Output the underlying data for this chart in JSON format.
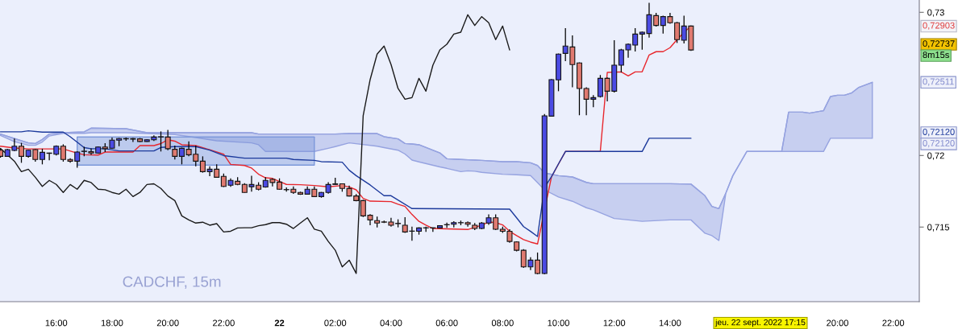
{
  "chart_data": {
    "type": "candlestick",
    "x": [
      "2022-09-21T14:00",
      "2022-09-21T14:15",
      "2022-09-21T14:30",
      "2022-09-21T14:45",
      "2022-09-21T15:00",
      "2022-09-21T15:15",
      "2022-09-21T15:30",
      "2022-09-21T15:45",
      "2022-09-21T16:00",
      "2022-09-21T16:15",
      "2022-09-21T16:30",
      "2022-09-21T16:45",
      "2022-09-21T17:00",
      "2022-09-21T17:15",
      "2022-09-21T17:30",
      "2022-09-21T17:45",
      "2022-09-21T18:00",
      "2022-09-21T18:15",
      "2022-09-21T18:30",
      "2022-09-21T18:45",
      "2022-09-21T19:00",
      "2022-09-21T19:15",
      "2022-09-21T19:30",
      "2022-09-21T19:45",
      "2022-09-21T20:00",
      "2022-09-21T20:15",
      "2022-09-21T20:30",
      "2022-09-21T20:45",
      "2022-09-21T21:00",
      "2022-09-21T21:15",
      "2022-09-21T21:30",
      "2022-09-21T21:45",
      "2022-09-21T22:00",
      "2022-09-21T22:15",
      "2022-09-21T22:30",
      "2022-09-21T22:45",
      "2022-09-21T23:00",
      "2022-09-21T23:15",
      "2022-09-21T23:30",
      "2022-09-21T23:45",
      "2022-09-22T00:00",
      "2022-09-22T00:15",
      "2022-09-22T00:30",
      "2022-09-22T00:45",
      "2022-09-22T01:00",
      "2022-09-22T01:15",
      "2022-09-22T01:30",
      "2022-09-22T01:45",
      "2022-09-22T02:00",
      "2022-09-22T02:15",
      "2022-09-22T02:30",
      "2022-09-22T02:45",
      "2022-09-22T03:00",
      "2022-09-22T03:15",
      "2022-09-22T03:30",
      "2022-09-22T03:45",
      "2022-09-22T04:00",
      "2022-09-22T04:15",
      "2022-09-22T04:30",
      "2022-09-22T04:45",
      "2022-09-22T05:00",
      "2022-09-22T05:15",
      "2022-09-22T05:30",
      "2022-09-22T05:45",
      "2022-09-22T06:00",
      "2022-09-22T06:15",
      "2022-09-22T06:30",
      "2022-09-22T06:45",
      "2022-09-22T07:00",
      "2022-09-22T07:15",
      "2022-09-22T07:30",
      "2022-09-22T07:45",
      "2022-09-22T08:00",
      "2022-09-22T08:15",
      "2022-09-22T08:30",
      "2022-09-22T08:45",
      "2022-09-22T09:00",
      "2022-09-22T09:15",
      "2022-09-22T09:30",
      "2022-09-22T09:45",
      "2022-09-22T10:00",
      "2022-09-22T10:15",
      "2022-09-22T10:30",
      "2022-09-22T10:45",
      "2022-09-22T11:00",
      "2022-09-22T11:15",
      "2022-09-22T11:30",
      "2022-09-22T11:45",
      "2022-09-22T12:00",
      "2022-09-22T12:15",
      "2022-09-22T12:30",
      "2022-09-22T12:45",
      "2022-09-22T13:00",
      "2022-09-22T13:15",
      "2022-09-22T13:30",
      "2022-09-22T13:45",
      "2022-09-22T14:00",
      "2022-09-22T14:15",
      "2022-09-22T14:30",
      "2022-09-22T14:45"
    ],
    "ohlc": [
      [
        0.72037,
        0.72047,
        0.71985,
        0.71994
      ],
      [
        0.71994,
        0.72047,
        0.7199,
        0.72041
      ],
      [
        0.72035,
        0.72118,
        0.7203,
        0.72065
      ],
      [
        0.72065,
        0.72088,
        0.71949,
        0.71994
      ],
      [
        0.71994,
        0.7204,
        0.71985,
        0.72037
      ],
      [
        0.72041,
        0.72045,
        0.71957,
        0.71972
      ],
      [
        0.71972,
        0.72047,
        0.71938,
        0.72022
      ],
      [
        0.72017,
        0.7202,
        0.71966,
        0.72015
      ],
      [
        0.72009,
        0.7207,
        0.72,
        0.72065
      ],
      [
        0.72065,
        0.72078,
        0.71957,
        0.71972
      ],
      [
        0.71972,
        0.71981,
        0.71949,
        0.7196
      ],
      [
        0.7196,
        0.7203,
        0.71915,
        0.72024
      ],
      [
        0.72028,
        0.72061,
        0.71994,
        0.7203
      ],
      [
        0.72026,
        0.7205,
        0.72005,
        0.72017
      ],
      [
        0.72017,
        0.72063,
        0.72013,
        0.72059
      ],
      [
        0.72059,
        0.72086,
        0.72024,
        0.72047
      ],
      [
        0.72051,
        0.72125,
        0.72047,
        0.72107
      ],
      [
        0.72107,
        0.72122,
        0.72065,
        0.72118
      ],
      [
        0.72116,
        0.72125,
        0.72103,
        0.72118
      ],
      [
        0.72118,
        0.72122,
        0.72094,
        0.72114
      ],
      [
        0.72116,
        0.72122,
        0.72094,
        0.72098
      ],
      [
        0.72098,
        0.72114,
        0.72096,
        0.7211
      ],
      [
        0.7211,
        0.7214,
        0.72101,
        0.72129
      ],
      [
        0.72129,
        0.72168,
        0.72028,
        0.72131
      ],
      [
        0.72129,
        0.72179,
        0.72037,
        0.72047
      ],
      [
        0.72043,
        0.72069,
        0.71972,
        0.71994
      ],
      [
        0.71994,
        0.72055,
        0.71938,
        0.7205
      ],
      [
        0.72043,
        0.72099,
        0.71994,
        0.72005
      ],
      [
        0.72009,
        0.72069,
        0.71925,
        0.7196
      ],
      [
        0.7196,
        0.71994,
        0.7188,
        0.71887
      ],
      [
        0.71887,
        0.71925,
        0.71855,
        0.71904
      ],
      [
        0.71904,
        0.71938,
        0.71845,
        0.71848
      ],
      [
        0.71854,
        0.71874,
        0.7178,
        0.71784
      ],
      [
        0.71792,
        0.7184,
        0.71781,
        0.71826
      ],
      [
        0.7182,
        0.71848,
        0.71792,
        0.71798
      ],
      [
        0.71798,
        0.71807,
        0.7174,
        0.71742
      ],
      [
        0.71782,
        0.71859,
        0.71747,
        0.71797
      ],
      [
        0.71792,
        0.71813,
        0.71756,
        0.71764
      ],
      [
        0.7178,
        0.71848,
        0.71775,
        0.71826
      ],
      [
        0.71833,
        0.7184,
        0.71784,
        0.71811
      ],
      [
        0.71814,
        0.7184,
        0.7176,
        0.71764
      ],
      [
        0.71762,
        0.71777,
        0.71747,
        0.71761
      ],
      [
        0.71764,
        0.71784,
        0.71732,
        0.71742
      ],
      [
        0.71742,
        0.71747,
        0.71725,
        0.7173
      ],
      [
        0.7173,
        0.71784,
        0.71728,
        0.71764
      ],
      [
        0.71764,
        0.71784,
        0.71711,
        0.71713
      ],
      [
        0.71713,
        0.71745,
        0.71705,
        0.71742
      ],
      [
        0.71742,
        0.71813,
        0.71734,
        0.71797
      ],
      [
        0.71798,
        0.71844,
        0.71795,
        0.71802
      ],
      [
        0.71802,
        0.71805,
        0.71747,
        0.7177
      ],
      [
        0.71769,
        0.7179,
        0.71713,
        0.71717
      ],
      [
        0.71717,
        0.7173,
        0.7168,
        0.71685
      ],
      [
        0.71685,
        0.7169,
        0.7157,
        0.71578
      ],
      [
        0.71582,
        0.7159,
        0.71513,
        0.7155
      ],
      [
        0.71545,
        0.71573,
        0.71498,
        0.71528
      ],
      [
        0.71536,
        0.71545,
        0.71528,
        0.71534
      ],
      [
        0.71535,
        0.71565,
        0.71503,
        0.71513
      ],
      [
        0.71526,
        0.71554,
        0.71498,
        0.71524
      ],
      [
        0.71513,
        0.71569,
        0.7146,
        0.71466
      ],
      [
        0.71472,
        0.71503,
        0.71404,
        0.71471
      ],
      [
        0.71471,
        0.71498,
        0.71447,
        0.71494
      ],
      [
        0.71494,
        0.71503,
        0.71466,
        0.71495
      ],
      [
        0.71494,
        0.71498,
        0.71466,
        0.71495
      ],
      [
        0.71494,
        0.71513,
        0.7149,
        0.71509
      ],
      [
        0.71516,
        0.71531,
        0.71494,
        0.71517
      ],
      [
        0.7152,
        0.71541,
        0.71498,
        0.71531
      ],
      [
        0.7153,
        0.71545,
        0.71513,
        0.71531
      ],
      [
        0.71531,
        0.71539,
        0.71503,
        0.7152
      ],
      [
        0.71513,
        0.71528,
        0.71479,
        0.7149
      ],
      [
        0.7149,
        0.71535,
        0.71485,
        0.71528
      ],
      [
        0.71528,
        0.71588,
        0.71516,
        0.71565
      ],
      [
        0.71565,
        0.71588,
        0.71479,
        0.71485
      ],
      [
        0.71485,
        0.71503,
        0.7146,
        0.71471
      ],
      [
        0.71471,
        0.71485,
        0.7139,
        0.714
      ],
      [
        0.71396,
        0.714,
        0.7133,
        0.71338
      ],
      [
        0.71338,
        0.71345,
        0.71215,
        0.71222
      ],
      [
        0.71222,
        0.7129,
        0.712,
        0.71269
      ],
      [
        0.71269,
        0.71322,
        0.7117,
        0.71176
      ],
      [
        0.71176,
        0.7229,
        0.7117,
        0.72277
      ],
      [
        0.72275,
        0.72534,
        0.72271,
        0.7253
      ],
      [
        0.72528,
        0.72712,
        0.72449,
        0.72708
      ],
      [
        0.72713,
        0.72889,
        0.72659,
        0.72764
      ],
      [
        0.72758,
        0.72839,
        0.72477,
        0.72635
      ],
      [
        0.72646,
        0.7265,
        0.72281,
        0.72468
      ],
      [
        0.72468,
        0.72477,
        0.72281,
        0.72393
      ],
      [
        0.72393,
        0.72421,
        0.72337,
        0.72404
      ],
      [
        0.72412,
        0.72562,
        0.72405,
        0.72539
      ],
      [
        0.72539,
        0.72545,
        0.72378,
        0.72449
      ],
      [
        0.72449,
        0.72805,
        0.7244,
        0.72631
      ],
      [
        0.72631,
        0.72745,
        0.7258,
        0.72738
      ],
      [
        0.72738,
        0.72783,
        0.72683,
        0.72777
      ],
      [
        0.72771,
        0.72889,
        0.72726,
        0.72848
      ],
      [
        0.72848,
        0.72865,
        0.72739,
        0.72861
      ],
      [
        0.72852,
        0.73067,
        0.72824,
        0.72983
      ],
      [
        0.72977,
        0.72996,
        0.729,
        0.72908
      ],
      [
        0.72908,
        0.72977,
        0.72852,
        0.7297
      ],
      [
        0.7297,
        0.72996,
        0.7292,
        0.72927
      ],
      [
        0.72927,
        0.72933,
        0.72786,
        0.72809
      ],
      [
        0.72805,
        0.72977,
        0.72783,
        0.72904
      ],
      [
        0.72904,
        0.72908,
        0.7273,
        0.72737
      ]
    ],
    "colors": [
      "#e07a70",
      "#4b4be3",
      "#4b4be3",
      "#e07a70",
      "#4b4be3",
      "#e07a70",
      "#4b4be3",
      "#e07a70",
      "#4b4be3",
      "#e07a70",
      "#e07a70",
      "#4b4be3",
      "#4b4be3",
      "#e07a70",
      "#4b4be3",
      "#e07a70",
      "#4b4be3",
      "#4b4be3",
      "#4b4be3",
      "#e07a70",
      "#e07a70",
      "#4b4be3",
      "#4b4be3",
      "#4b4be3",
      "#e07a70",
      "#e07a70",
      "#4b4be3",
      "#e07a70",
      "#e07a70",
      "#e07a70",
      "#4b4be3",
      "#e07a70",
      "#e07a70",
      "#4b4be3",
      "#e07a70",
      "#e07a70",
      "#4b4be3",
      "#e07a70",
      "#4b4be3",
      "#e07a70",
      "#e07a70",
      "#e07a70",
      "#e07a70",
      "#e07a70",
      "#4b4be3",
      "#e07a70",
      "#4b4be3",
      "#4b4be3",
      "#4b4be3",
      "#e07a70",
      "#e07a70",
      "#e07a70",
      "#e07a70",
      "#e07a70",
      "#e07a70",
      "#e07a70",
      "#e07a70",
      "#e07a70",
      "#e07a70",
      "#e07a70",
      "#4b4be3",
      "#4b4be3",
      "#4b4be3",
      "#4b4be3",
      "#4b4be3",
      "#4b4be3",
      "#4b4be3",
      "#e07a70",
      "#e07a70",
      "#4b4be3",
      "#4b4be3",
      "#e07a70",
      "#e07a70",
      "#e07a70",
      "#e07a70",
      "#e07a70",
      "#4b4be3",
      "#e07a70",
      "#4b4be3",
      "#4b4be3",
      "#4b4be3",
      "#4b4be3",
      "#e07a70",
      "#e07a70",
      "#e07a70",
      "#4b4be3",
      "#4b4be3",
      "#e07a70",
      "#4b4be3",
      "#4b4be3",
      "#4b4be3",
      "#4b4be3",
      "#4b4be3",
      "#4b4be3",
      "#e07a70",
      "#4b4be3",
      "#e07a70",
      "#e07a70",
      "#4b4be3",
      "#e07a70"
    ],
    "series": [
      {
        "type": "line",
        "color": "#96a3e0",
        "x": [
          "2022-09-21T14:00",
          "2022-09-21T14:30",
          "2022-09-21T15:00",
          "2022-09-21T15:15",
          "2022-09-21T15:30",
          "2022-09-21T15:45",
          "2022-09-21T16:15",
          "2022-09-21T17:00",
          "2022-09-21T17:15",
          "2022-09-21T18:30",
          "2022-09-21T19:15",
          "2022-09-21T20:15",
          "2022-09-21T21:00",
          "2022-09-21T21:45",
          "2022-09-21T23:00",
          "2022-09-21T23:15",
          "2022-09-21T23:30",
          "2022-09-22T01:15",
          "2022-09-22T01:45",
          "2022-09-22T02:00",
          "2022-09-22T02:30",
          "2022-09-22T03:30",
          "2022-09-22T03:45",
          "2022-09-22T04:15",
          "2022-09-22T04:30",
          "2022-09-22T04:45",
          "2022-09-22T05:00",
          "2022-09-22T05:45",
          "2022-09-22T06:00",
          "2022-09-22T06:30",
          "2022-09-22T06:45",
          "2022-09-22T07:00",
          "2022-09-22T07:15",
          "2022-09-22T08:00",
          "2022-09-22T08:30",
          "2022-09-22T09:00",
          "2022-09-22T09:15",
          "2022-09-22T09:30",
          "2022-09-22T10:00",
          "2022-09-22T10:30",
          "2022-09-22T11:00",
          "2022-09-22T11:15",
          "2022-09-22T12:00",
          "2022-09-22T13:00",
          "2022-09-22T14:00",
          "2022-09-22T14:45",
          "2022-09-22T15:15",
          "2022-09-22T15:30",
          "2022-09-22T15:45",
          "2022-09-22T16:00",
          "2022-09-22T16:15",
          "2022-09-22T16:45",
          "2022-09-22T18:00",
          "2022-09-22T18:15",
          "2022-09-22T18:45",
          "2022-09-22T19:00",
          "2022-09-22T19:30",
          "2022-09-22T19:45",
          "2022-09-22T20:00",
          "2022-09-22T20:15",
          "2022-09-22T20:30",
          "2022-09-22T20:45",
          "2022-09-22T21:15"
        ],
        "values": [
          0.7215,
          0.72118,
          0.72088,
          0.72084,
          0.72112,
          0.7215,
          0.72159,
          0.72165,
          0.72191,
          0.72187,
          0.72159,
          0.72159,
          0.72159,
          0.72159,
          0.72159,
          0.7215,
          0.7215,
          0.7215,
          0.7215,
          0.7215,
          0.72153,
          0.72153,
          0.72131,
          0.72116,
          0.72084,
          0.7208,
          0.72075,
          0.72018,
          0.71977,
          0.71972,
          0.7197,
          0.71968,
          0.71966,
          0.71957,
          0.71957,
          0.71949,
          0.7193,
          0.71878,
          0.71859,
          0.7185,
          0.71812,
          0.71803,
          0.71803,
          0.71803,
          0.71803,
          0.718,
          0.71719,
          0.71644,
          0.71629,
          0.71738,
          0.71859,
          0.72028,
          0.72028,
          0.72303,
          0.72303,
          0.72296,
          0.72313,
          0.72412,
          0.72421,
          0.72421,
          0.72436,
          0.72474,
          0.72511
        ],
        "upper": [
          0.7215,
          0.72118,
          0.72088,
          0.72084,
          0.72112,
          0.7215,
          0.72159,
          0.72165,
          0.72191,
          0.72187,
          0.72159,
          0.72159,
          0.72159,
          0.72159,
          0.72159,
          0.7215,
          0.7215,
          0.7215,
          0.7215,
          0.7215,
          0.72153,
          0.72153,
          0.72131,
          0.72116,
          0.72084,
          0.7208,
          0.72075,
          0.72018,
          0.71977,
          0.71972,
          0.7197,
          0.71968,
          0.71966,
          0.71957,
          0.71957,
          0.71949,
          0.7193,
          0.71878,
          0.71859,
          0.7185,
          0.71812,
          0.71803,
          0.71803,
          0.71803,
          0.71803,
          0.718,
          0.71719,
          0.71644,
          0.71629,
          0.71738,
          0.71859,
          0.72028,
          0.72028,
          0.72303,
          0.72303,
          0.72296,
          0.72313,
          0.72412,
          0.72421,
          0.72421,
          0.72436,
          0.72474,
          0.72511
        ],
        "lower": [
          0.7214,
          0.72097,
          0.72071,
          0.72071,
          0.72094,
          0.72136,
          0.72155,
          0.72155,
          0.72159,
          0.72159,
          0.72153,
          0.72146,
          0.72125,
          0.72103,
          0.72088,
          0.72075,
          0.72028,
          0.72028,
          0.7205,
          0.72062,
          0.72088,
          0.72065,
          0.72055,
          0.72037,
          0.7201,
          0.71968,
          0.71955,
          0.7192,
          0.7191,
          0.71887,
          0.71893,
          0.7189,
          0.71882,
          0.71869,
          0.71865,
          0.7186,
          0.7181,
          0.7176,
          0.7171,
          0.7168,
          0.71635,
          0.7162,
          0.7156,
          0.7154,
          0.7155,
          0.7155,
          0.71457,
          0.7144,
          0.71406,
          0.71738,
          0.71859,
          0.72028,
          0.72028,
          0.72028,
          0.72028,
          0.72028,
          0.72028,
          0.7212,
          0.7212,
          0.7212,
          0.7212,
          0.7212,
          0.7212
        ]
      },
      {
        "type": "line",
        "color": "#7b97da",
        "x": [
          "2022-09-21T16:45",
          "2022-09-22T01:15"
        ],
        "values": [
          0.72129,
          0.72129
        ],
        "upper": [
          0.72129,
          0.72129
        ],
        "lower": [
          0.71933,
          0.71933
        ]
      },
      {
        "type": "line",
        "color": "#e8262c",
        "x": [
          "2022-09-21T14:00",
          "2022-09-21T14:30",
          "2022-09-21T15:00",
          "2022-09-21T16:15",
          "2022-09-21T16:45",
          "2022-09-21T17:00",
          "2022-09-21T17:30",
          "2022-09-21T17:45",
          "2022-09-21T18:45",
          "2022-09-21T19:00",
          "2022-09-21T19:30",
          "2022-09-21T19:45",
          "2022-09-21T20:00",
          "2022-09-21T20:15",
          "2022-09-21T20:30",
          "2022-09-21T21:00",
          "2022-09-21T21:30",
          "2022-09-21T22:00",
          "2022-09-21T22:15",
          "2022-09-21T22:45",
          "2022-09-21T23:00",
          "2022-09-21T23:15",
          "2022-09-21T23:30",
          "2022-09-21T23:45",
          "2022-09-22T00:00",
          "2022-09-22T00:15",
          "2022-09-22T00:45",
          "2022-09-22T01:15",
          "2022-09-22T01:45",
          "2022-09-22T02:15",
          "2022-09-22T02:30",
          "2022-09-22T02:45",
          "2022-09-22T03:00",
          "2022-09-22T03:15",
          "2022-09-22T04:00",
          "2022-09-22T04:15",
          "2022-09-22T04:30",
          "2022-09-22T04:45",
          "2022-09-22T05:00",
          "2022-09-22T05:15",
          "2022-09-22T05:30",
          "2022-09-22T06:45",
          "2022-09-22T07:00",
          "2022-09-22T07:15",
          "2022-09-22T07:30",
          "2022-09-22T07:45",
          "2022-09-22T08:00",
          "2022-09-22T08:15",
          "2022-09-22T08:30",
          "2022-09-22T08:45",
          "2022-09-22T09:00",
          "2022-09-22T09:15",
          "2022-09-22T09:45",
          "2022-09-22T10:00",
          "2022-09-22T10:15",
          "2022-09-22T11:30",
          "2022-09-22T11:45",
          "2022-09-22T12:15",
          "2022-09-22T12:30",
          "2022-09-22T12:45",
          "2022-09-22T13:00",
          "2022-09-22T13:15",
          "2022-09-22T13:30",
          "2022-09-22T13:45",
          "2022-09-22T14:00",
          "2022-09-22T14:15",
          "2022-09-22T14:30",
          "2022-09-22T14:45"
        ],
        "values": [
          0.72065,
          0.72052,
          0.72046,
          0.72046,
          0.72016,
          0.72005,
          0.72003,
          0.72024,
          0.72024,
          0.72069,
          0.72069,
          0.72083,
          0.7211,
          0.721,
          0.72075,
          0.72069,
          0.7204,
          0.72009,
          0.71938,
          0.7193,
          0.71912,
          0.71869,
          0.71844,
          0.7184,
          0.71818,
          0.71798,
          0.71796,
          0.7179,
          0.71781,
          0.7179,
          0.7178,
          0.7176,
          0.717,
          0.71681,
          0.71678,
          0.7166,
          0.71644,
          0.71588,
          0.7154,
          0.71513,
          0.7149,
          0.71483,
          0.71498,
          0.71513,
          0.71535,
          0.71531,
          0.71515,
          0.7147,
          0.7144,
          0.71412,
          0.71395,
          0.71382,
          0.7185,
          0.7194,
          0.72028,
          0.72028,
          0.7258,
          0.72584,
          0.72556,
          0.72584,
          0.72584,
          0.72702,
          0.72725,
          0.72725,
          0.72753,
          0.72809,
          0.7286,
          0.72903
        ]
      },
      {
        "type": "line",
        "color": "#1c3a9c",
        "x": [
          "2022-09-21T14:00",
          "2022-09-21T14:45",
          "2022-09-21T15:00",
          "2022-09-21T15:30",
          "2022-09-21T16:15",
          "2022-09-21T16:30",
          "2022-09-21T16:45",
          "2022-09-21T17:00",
          "2022-09-21T17:15",
          "2022-09-21T17:45",
          "2022-09-21T18:15",
          "2022-09-21T19:30",
          "2022-09-21T19:45",
          "2022-09-21T20:15",
          "2022-09-21T21:00",
          "2022-09-21T21:30",
          "2022-09-21T22:00",
          "2022-09-21T22:45",
          "2022-09-22T00:15",
          "2022-09-22T00:30",
          "2022-09-22T01:15",
          "2022-09-22T01:30",
          "2022-09-22T02:15",
          "2022-09-22T02:30",
          "2022-09-22T02:45",
          "2022-09-22T03:15",
          "2022-09-22T03:45",
          "2022-09-22T04:00",
          "2022-09-22T04:45",
          "2022-09-22T08:15",
          "2022-09-22T08:30",
          "2022-09-22T08:45",
          "2022-09-22T09:00",
          "2022-09-22T09:15",
          "2022-09-22T09:30",
          "2022-09-22T09:45",
          "2022-09-22T10:00",
          "2022-09-22T10:15",
          "2022-09-22T13:00",
          "2022-09-22T13:15",
          "2022-09-22T14:45"
        ],
        "values": [
          0.72165,
          0.72165,
          0.72172,
          0.72163,
          0.72163,
          0.72131,
          0.72093,
          0.72055,
          0.72047,
          0.72047,
          0.72032,
          0.72032,
          0.72056,
          0.72062,
          0.72062,
          0.72037,
          0.71999,
          0.71981,
          0.71981,
          0.71972,
          0.71966,
          0.71957,
          0.71953,
          0.71897,
          0.71859,
          0.71794,
          0.71719,
          0.71719,
          0.71629,
          0.71625,
          0.71565,
          0.71503,
          0.7147,
          0.71434,
          0.71776,
          0.71852,
          0.71941,
          0.72028,
          0.72028,
          0.7212,
          0.7212
        ]
      },
      {
        "type": "line",
        "color": "#1a1a1a",
        "x": [
          "2022-09-21T14:00",
          "2022-09-21T14:15",
          "2022-09-21T14:30",
          "2022-09-21T14:45",
          "2022-09-21T15:00",
          "2022-09-21T15:15",
          "2022-09-21T15:30",
          "2022-09-21T15:45",
          "2022-09-21T16:00",
          "2022-09-21T16:15",
          "2022-09-21T16:30",
          "2022-09-21T16:45",
          "2022-09-21T17:00",
          "2022-09-21T17:15",
          "2022-09-21T17:30",
          "2022-09-21T17:45",
          "2022-09-21T18:00",
          "2022-09-21T18:15",
          "2022-09-21T18:30",
          "2022-09-21T18:45",
          "2022-09-21T19:00",
          "2022-09-21T19:15",
          "2022-09-21T19:30",
          "2022-09-21T19:45",
          "2022-09-21T20:00",
          "2022-09-21T20:15",
          "2022-09-21T20:30",
          "2022-09-21T20:45",
          "2022-09-21T21:00",
          "2022-09-21T21:15",
          "2022-09-21T21:30",
          "2022-09-21T21:45",
          "2022-09-21T22:00",
          "2022-09-21T22:15",
          "2022-09-21T22:30",
          "2022-09-21T22:45",
          "2022-09-21T23:00",
          "2022-09-21T23:15",
          "2022-09-21T23:30",
          "2022-09-21T23:45",
          "2022-09-22T00:00",
          "2022-09-22T00:15",
          "2022-09-22T00:30",
          "2022-09-22T00:45",
          "2022-09-22T01:00",
          "2022-09-22T01:15",
          "2022-09-22T01:30",
          "2022-09-22T01:45",
          "2022-09-22T02:00",
          "2022-09-22T02:15",
          "2022-09-22T02:30",
          "2022-09-22T02:45",
          "2022-09-22T03:00",
          "2022-09-22T03:15",
          "2022-09-22T03:30",
          "2022-09-22T03:45",
          "2022-09-22T04:00",
          "2022-09-22T04:15",
          "2022-09-22T04:30",
          "2022-09-22T04:45",
          "2022-09-22T05:00",
          "2022-09-22T05:15",
          "2022-09-22T05:30",
          "2022-09-22T05:45",
          "2022-09-22T06:00",
          "2022-09-22T06:15",
          "2022-09-22T06:30",
          "2022-09-22T06:45",
          "2022-09-22T07:00",
          "2022-09-22T07:15",
          "2022-09-22T07:30",
          "2022-09-22T07:45",
          "2022-09-22T08:00",
          "2022-09-22T08:15"
        ],
        "values": [
          0.7205,
          0.72005,
          0.7196,
          0.71887,
          0.71904,
          0.71848,
          0.71784,
          0.71826,
          0.71798,
          0.71742,
          0.71797,
          0.71764,
          0.71826,
          0.71811,
          0.71764,
          0.71761,
          0.71742,
          0.7173,
          0.71764,
          0.71713,
          0.71742,
          0.71797,
          0.71802,
          0.7177,
          0.71717,
          0.71685,
          0.71578,
          0.7155,
          0.71528,
          0.71534,
          0.71513,
          0.71524,
          0.71466,
          0.71471,
          0.71494,
          0.71495,
          0.71495,
          0.71509,
          0.71517,
          0.71531,
          0.71531,
          0.7152,
          0.7149,
          0.71528,
          0.71565,
          0.71485,
          0.71471,
          0.714,
          0.71338,
          0.71222,
          0.71269,
          0.71176,
          0.72277,
          0.7253,
          0.72708,
          0.72764,
          0.72635,
          0.72468,
          0.72393,
          0.72404,
          0.72539,
          0.72449,
          0.72631,
          0.72738,
          0.72777,
          0.72848,
          0.72861,
          0.72983,
          0.72908,
          0.7297,
          0.72927,
          0.72809,
          0.72904,
          0.72737
        ]
      }
    ],
    "xlim": [
      "2022-09-21T13:59",
      "2022-09-22T22:56"
    ],
    "ylim": [
      0.70979,
      0.73086
    ],
    "xticks": [
      {
        "value": "2022-09-21T16:00",
        "label": "16:00"
      },
      {
        "value": "2022-09-21T18:00",
        "label": "18:00"
      },
      {
        "value": "2022-09-21T20:00",
        "label": "20:00"
      },
      {
        "value": "2022-09-21T22:00",
        "label": "22:00"
      },
      {
        "value": "2022-09-22T00:00",
        "label": "22"
      },
      {
        "value": "2022-09-22T02:00",
        "label": "02:00"
      },
      {
        "value": "2022-09-22T04:00",
        "label": "04:00"
      },
      {
        "value": "2022-09-22T06:00",
        "label": "06:00"
      },
      {
        "value": "2022-09-22T08:00",
        "label": "08:00"
      },
      {
        "value": "2022-09-22T10:00",
        "label": "10:00"
      },
      {
        "value": "2022-09-22T12:00",
        "label": "12:00"
      },
      {
        "value": "2022-09-22T14:00",
        "label": "14:00"
      },
      {
        "value": "2022-09-22T20:00",
        "label": "20:00"
      },
      {
        "value": "2022-09-22T22:00",
        "label": "22:00"
      }
    ],
    "yticks": [
      {
        "value": 0.715,
        "label": "0,715"
      },
      {
        "value": 0.72,
        "label": "0,72"
      },
      {
        "value": 0.73,
        "label": "0,73"
      }
    ],
    "annotations": [
      "CADCHF, 15m",
      "jeu. 22 sept. 2022 17:15",
      "0,72903",
      "0,72737",
      "8m15s",
      "0,72511",
      "0,72120",
      "0,72120"
    ]
  }
}
